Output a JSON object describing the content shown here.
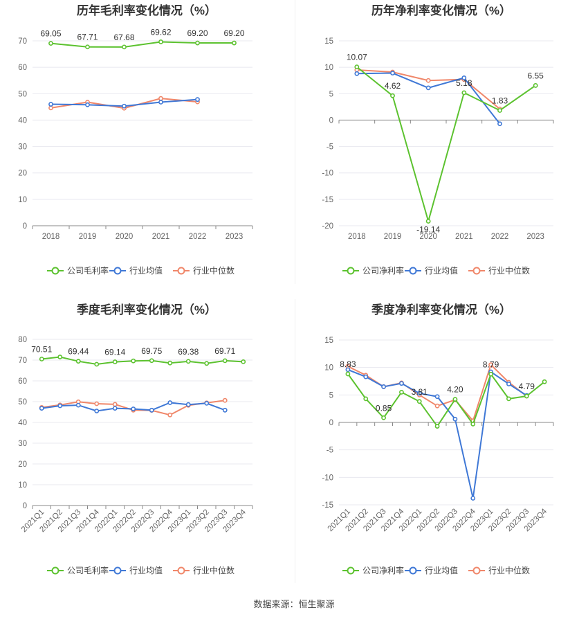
{
  "source_label": "数据来源：恒生聚源",
  "colors": {
    "company": "#5cc22f",
    "industry_avg": "#3f78d6",
    "industry_median": "#f0876a"
  },
  "chart_data": [
    {
      "id": "annual-gross",
      "type": "line",
      "title": "历年毛利率变化情况（%）",
      "categories": [
        "2018",
        "2019",
        "2020",
        "2021",
        "2022",
        "2023"
      ],
      "ylim": [
        0,
        70
      ],
      "yticks": [
        0,
        10,
        20,
        30,
        40,
        50,
        60,
        70
      ],
      "series": [
        {
          "name": "公司毛利率",
          "values": [
            69.05,
            67.71,
            67.68,
            69.62,
            69.2,
            69.2
          ],
          "labels": [
            "69.05",
            "67.71",
            "67.68",
            "69.62",
            "69.20",
            "69.20"
          ]
        },
        {
          "name": "行业均值",
          "values": [
            46.0,
            45.8,
            45.3,
            46.8,
            47.8,
            null
          ]
        },
        {
          "name": "行业中位数",
          "values": [
            44.6,
            46.8,
            44.5,
            48.2,
            46.9,
            null
          ]
        }
      ],
      "legend": "bottom"
    },
    {
      "id": "annual-net",
      "type": "line",
      "title": "历年净利率变化情况（%）",
      "categories": [
        "2018",
        "2019",
        "2020",
        "2021",
        "2022",
        "2023"
      ],
      "ylim": [
        -20,
        15
      ],
      "yticks": [
        -20,
        -15,
        -10,
        -5,
        0,
        5,
        10,
        15
      ],
      "series": [
        {
          "name": "公司净利率",
          "values": [
            10.07,
            4.62,
            -19.14,
            5.18,
            1.83,
            6.55
          ],
          "labels": [
            "10.07",
            "4.62",
            "-19.14",
            "5.18",
            "1.83",
            "6.55"
          ]
        },
        {
          "name": "行业均值",
          "values": [
            8.8,
            8.9,
            6.1,
            8.0,
            -0.7,
            null
          ]
        },
        {
          "name": "行业中位数",
          "values": [
            9.5,
            9.1,
            7.5,
            7.7,
            2.1,
            null
          ]
        }
      ],
      "legend": "bottom"
    },
    {
      "id": "quarterly-gross",
      "type": "line",
      "title": "季度毛利率变化情况（%）",
      "categories": [
        "2021Q1",
        "2021Q2",
        "2021Q3",
        "2021Q4",
        "2022Q1",
        "2022Q2",
        "2022Q3",
        "2022Q4",
        "2023Q1",
        "2023Q2",
        "2023Q3",
        "2023Q4"
      ],
      "ylim": [
        0,
        80
      ],
      "yticks": [
        0,
        10,
        20,
        30,
        40,
        50,
        60,
        70,
        80
      ],
      "series": [
        {
          "name": "公司毛利率",
          "values": [
            70.51,
            71.5,
            69.44,
            68.0,
            69.14,
            69.6,
            69.75,
            68.6,
            69.38,
            68.4,
            69.71,
            69.2
          ],
          "labels": [
            "70.51",
            "",
            "69.44",
            "",
            "69.14",
            "",
            "69.75",
            "",
            "69.38",
            "",
            "69.71",
            ""
          ]
        },
        {
          "name": "行业均值",
          "values": [
            46.8,
            48.0,
            48.3,
            45.5,
            46.8,
            46.5,
            45.9,
            49.5,
            48.6,
            49.2,
            45.9,
            null
          ]
        },
        {
          "name": "行业中位数",
          "values": [
            47.2,
            48.4,
            49.9,
            49.0,
            48.7,
            45.9,
            45.8,
            43.6,
            48.2,
            49.4,
            50.6,
            null
          ]
        }
      ],
      "legend": "bottom"
    },
    {
      "id": "quarterly-net",
      "type": "line",
      "title": "季度净利率变化情况（%）",
      "categories": [
        "2021Q1",
        "2021Q2",
        "2021Q3",
        "2021Q4",
        "2022Q1",
        "2022Q2",
        "2022Q3",
        "2022Q4",
        "2023Q1",
        "2023Q2",
        "2023Q3",
        "2023Q4"
      ],
      "ylim": [
        -15,
        15
      ],
      "yticks": [
        -15,
        -10,
        -5,
        0,
        5,
        10,
        15
      ],
      "series": [
        {
          "name": "公司净利率",
          "values": [
            8.83,
            4.3,
            0.85,
            5.5,
            3.81,
            -0.7,
            4.2,
            -0.3,
            8.79,
            4.3,
            4.79,
            7.4
          ],
          "labels": [
            "8.83",
            "",
            "0.85",
            "",
            "3.81",
            "",
            "4.20",
            "",
            "8.79",
            "",
            "4.79",
            ""
          ]
        },
        {
          "name": "行业均值",
          "values": [
            9.6,
            8.3,
            6.5,
            7.1,
            5.3,
            4.7,
            0.6,
            -13.8,
            9.2,
            7.0,
            4.9,
            null
          ]
        },
        {
          "name": "行业中位数",
          "values": [
            10.2,
            8.6,
            6.5,
            7.2,
            5.0,
            3.0,
            4.1,
            0.3,
            10.5,
            7.3,
            4.8,
            null
          ]
        }
      ],
      "legend": "bottom"
    }
  ]
}
